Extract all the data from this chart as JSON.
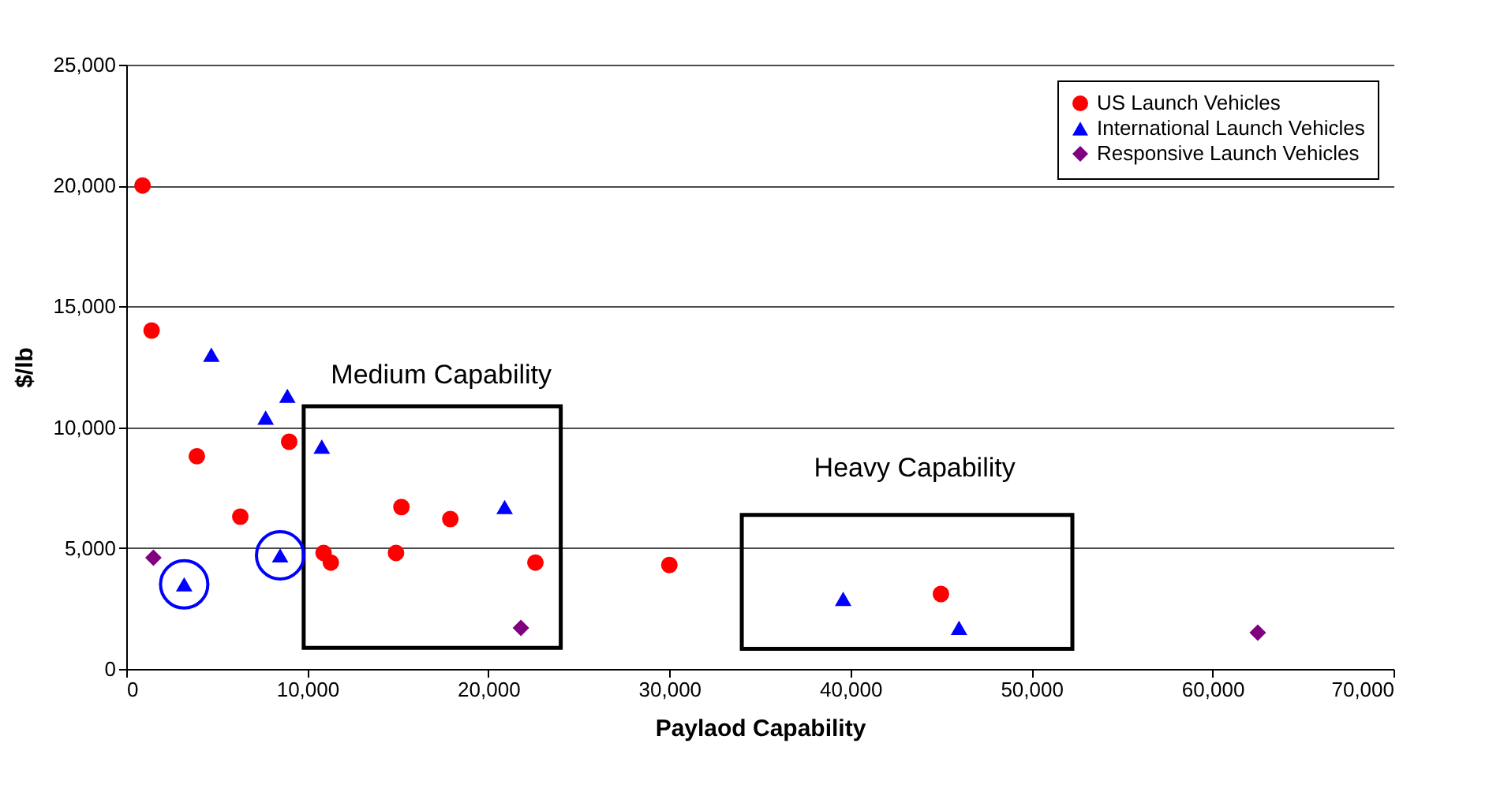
{
  "chart_data": {
    "type": "scatter",
    "xlabel": "Paylaod Capability",
    "ylabel": "$/lb",
    "xlim": [
      0,
      70000
    ],
    "ylim": [
      0,
      25000
    ],
    "xticks": [
      0,
      {
        "value": 10000,
        "label": "10,000"
      },
      {
        "value": 20000,
        "label": "20,000"
      },
      {
        "value": 30000,
        "label": "30,000"
      },
      {
        "value": 40000,
        "label": "40,000"
      },
      {
        "value": 50000,
        "label": "50,000"
      },
      {
        "value": 60000,
        "label": "60,000"
      },
      {
        "value": 70000,
        "label": "70,000"
      }
    ],
    "yticks": [
      0,
      {
        "value": 5000,
        "label": "5,000"
      },
      {
        "value": 10000,
        "label": "10,000"
      },
      {
        "value": 15000,
        "label": "15,000"
      },
      {
        "value": 20000,
        "label": "20,000"
      },
      {
        "value": 25000,
        "label": "25,000"
      }
    ],
    "grid": "y",
    "legend": "top right",
    "series": [
      {
        "name": "US Launch Vehicles",
        "color": "#ff0000",
        "marker": "circle",
        "x": [
          900,
          1400,
          3900,
          6300,
          9000,
          10900,
          11300,
          14900,
          15200,
          17900,
          22600,
          30000,
          45000
        ],
        "values": [
          20000,
          14000,
          8800,
          6300,
          9400,
          4800,
          4400,
          4800,
          6700,
          6200,
          4400,
          4300,
          3100
        ]
      },
      {
        "name": "International Launch Vehicles",
        "color": "#0000ff",
        "marker": "triangle",
        "x": [
          3200,
          4700,
          7700,
          8500,
          8900,
          10800,
          20900,
          39600,
          46000
        ],
        "values": [
          3500,
          13000,
          10400,
          4700,
          11300,
          9200,
          6700,
          2900,
          1700
        ]
      },
      {
        "name": "Responsive Launch Vehicles",
        "color": "#800080",
        "marker": "diamond",
        "x": [
          1500,
          21800,
          62500
        ],
        "values": [
          4600,
          1700,
          1500
        ]
      }
    ],
    "annotations": [
      "Medium Capability",
      "Heavy Capability"
    ]
  }
}
